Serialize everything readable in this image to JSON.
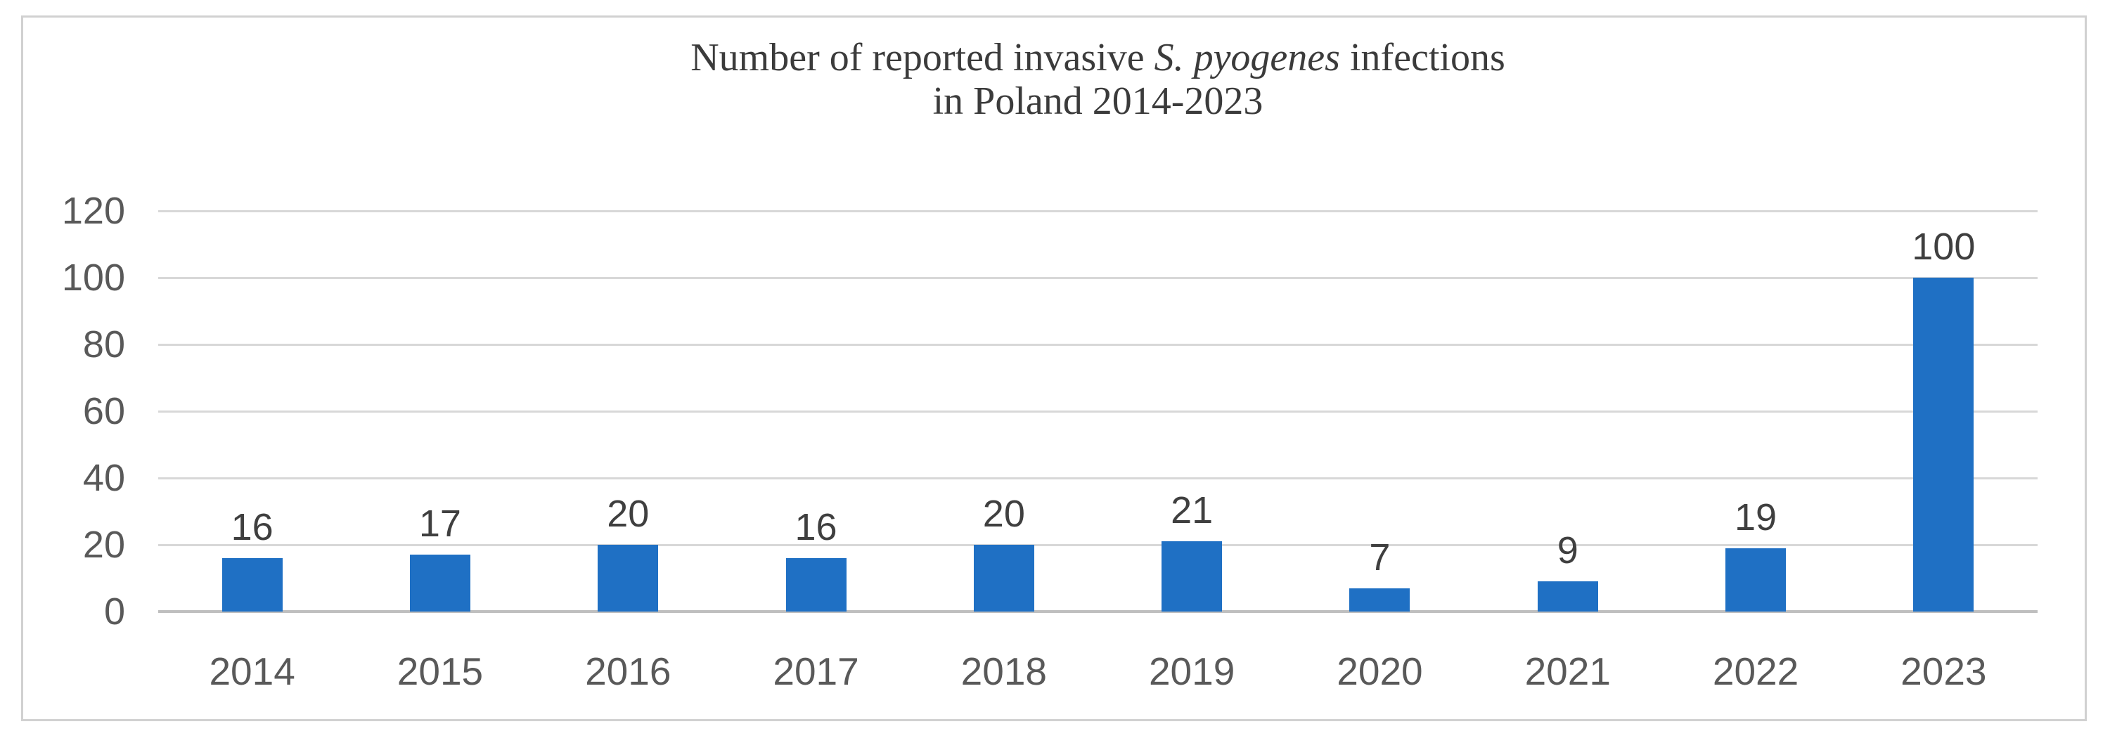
{
  "chart_data": {
    "type": "bar",
    "title": {
      "line1_prefix": "Number of reported invasive ",
      "line1_italic": "S. pyogenes",
      "line1_suffix": " infections",
      "line2": "in Poland 2014-2023"
    },
    "categories": [
      "2014",
      "2015",
      "2016",
      "2017",
      "2018",
      "2019",
      "2020",
      "2021",
      "2022",
      "2023"
    ],
    "values": [
      16,
      17,
      20,
      16,
      20,
      21,
      7,
      9,
      19,
      100
    ],
    "yticks": [
      0,
      20,
      40,
      60,
      80,
      100,
      120
    ],
    "ylim": [
      0,
      120
    ],
    "grid": "horizontal",
    "legend": "none",
    "colors": {
      "bar": "#1F70C4",
      "gridline": "#D8D8D8",
      "axis_line": "#BFBFBF",
      "value_label": "#3F3F3F",
      "tick_label": "#595959",
      "title": "#3B3B3B",
      "frame_border": "#D1D1D1"
    }
  }
}
